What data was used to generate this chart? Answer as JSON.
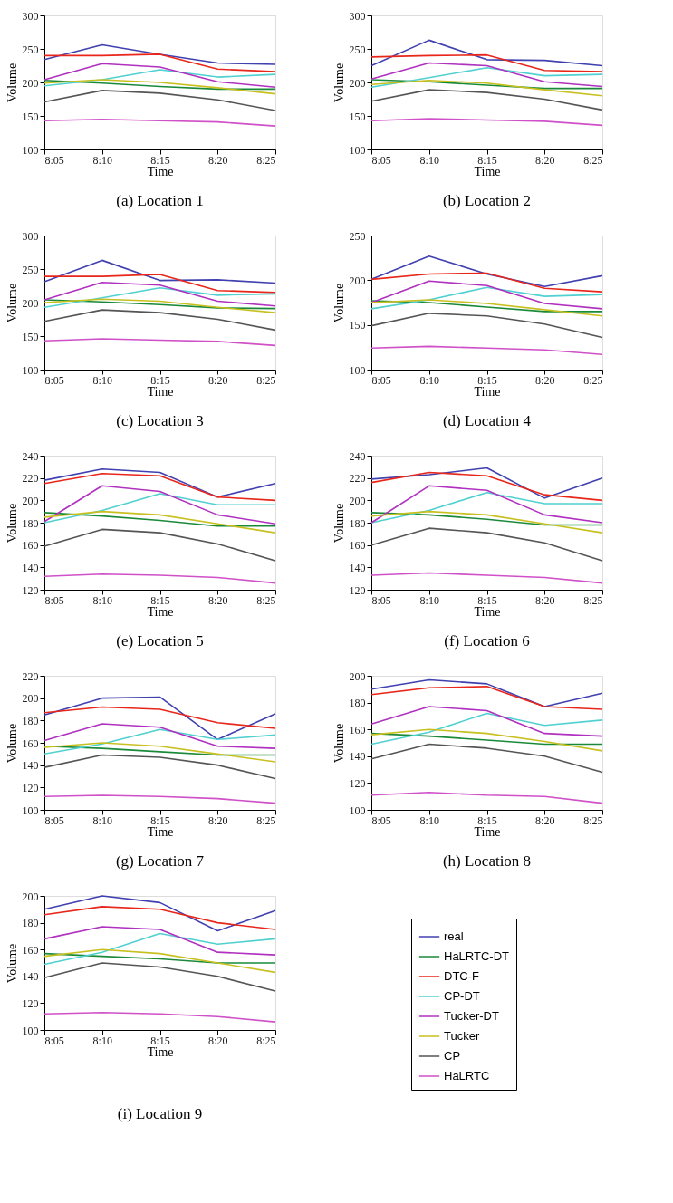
{
  "chart_data": [
    {
      "type": "line",
      "title": "(a) Location 1",
      "xlabel": "Time",
      "ylabel": "Volume",
      "categories": [
        "8:05",
        "8:10",
        "8:15",
        "8:20",
        "8:25"
      ],
      "ylim": [
        100,
        300
      ],
      "yticks": [
        100,
        150,
        200,
        250,
        300
      ],
      "grid": false,
      "legend": false,
      "series": [
        {
          "color": "#4040b0",
          "values": [
            234,
            256,
            242,
            229,
            227
          ]
        },
        {
          "color": "#1a8a3a",
          "values": [
            203,
            199,
            194,
            190,
            190
          ]
        },
        {
          "color": "#e8261a",
          "values": [
            240,
            240,
            242,
            220,
            216
          ]
        },
        {
          "color": "#50d0d0",
          "values": [
            195,
            204,
            219,
            208,
            212
          ]
        },
        {
          "color": "#b030c0",
          "values": [
            204,
            228,
            223,
            201,
            193
          ]
        },
        {
          "color": "#c8c020",
          "values": [
            199,
            204,
            200,
            192,
            183
          ]
        },
        {
          "color": "#555555",
          "values": [
            171,
            188,
            184,
            174,
            158
          ]
        },
        {
          "color": "#d050c8",
          "values": [
            143,
            145,
            143,
            141,
            135
          ]
        }
      ]
    },
    {
      "type": "line",
      "title": "(b) Location 2",
      "xlabel": "Time",
      "ylabel": "Volume",
      "categories": [
        "8:05",
        "8:10",
        "8:15",
        "8:20",
        "8:25"
      ],
      "ylim": [
        100,
        300
      ],
      "yticks": [
        100,
        150,
        200,
        250,
        300
      ],
      "grid": false,
      "legend": false,
      "series": [
        {
          "color": "#4040b0",
          "values": [
            225,
            263,
            234,
            233,
            225
          ]
        },
        {
          "color": "#1a8a3a",
          "values": [
            204,
            201,
            196,
            191,
            191
          ]
        },
        {
          "color": "#e8261a",
          "values": [
            238,
            240,
            241,
            218,
            216
          ]
        },
        {
          "color": "#50d0d0",
          "values": [
            193,
            207,
            222,
            210,
            212
          ]
        },
        {
          "color": "#b030c0",
          "values": [
            205,
            229,
            225,
            201,
            194
          ]
        },
        {
          "color": "#c8c020",
          "values": [
            197,
            203,
            199,
            189,
            180
          ]
        },
        {
          "color": "#555555",
          "values": [
            172,
            189,
            185,
            175,
            159
          ]
        },
        {
          "color": "#d050c8",
          "values": [
            143,
            146,
            144,
            142,
            136
          ]
        }
      ]
    },
    {
      "type": "line",
      "title": "(c) Location 3",
      "xlabel": "Time",
      "ylabel": "Volume",
      "categories": [
        "8:05",
        "8:10",
        "8:15",
        "8:20",
        "8:25"
      ],
      "ylim": [
        100,
        300
      ],
      "yticks": [
        100,
        150,
        200,
        250,
        300
      ],
      "grid": false,
      "legend": false,
      "series": [
        {
          "color": "#4040b0",
          "values": [
            231,
            263,
            233,
            234,
            229
          ]
        },
        {
          "color": "#1a8a3a",
          "values": [
            204,
            201,
            197,
            192,
            191
          ]
        },
        {
          "color": "#e8261a",
          "values": [
            239,
            239,
            242,
            218,
            215
          ]
        },
        {
          "color": "#50d0d0",
          "values": [
            193,
            207,
            222,
            211,
            213
          ]
        },
        {
          "color": "#b030c0",
          "values": [
            204,
            230,
            226,
            202,
            195
          ]
        },
        {
          "color": "#c8c020",
          "values": [
            200,
            205,
            202,
            193,
            185
          ]
        },
        {
          "color": "#555555",
          "values": [
            172,
            189,
            185,
            175,
            159
          ]
        },
        {
          "color": "#d050c8",
          "values": [
            143,
            146,
            144,
            142,
            136
          ]
        }
      ]
    },
    {
      "type": "line",
      "title": "(d) Location 4",
      "xlabel": "Time",
      "ylabel": "Volume",
      "categories": [
        "8:05",
        "8:10",
        "8:15",
        "8:20",
        "8:25"
      ],
      "ylim": [
        100,
        250
      ],
      "yticks": [
        100,
        150,
        200,
        250
      ],
      "grid": false,
      "legend": false,
      "series": [
        {
          "color": "#4040b0",
          "values": [
            201,
            227,
            207,
            193,
            205
          ]
        },
        {
          "color": "#1a8a3a",
          "values": [
            177,
            175,
            170,
            165,
            165
          ]
        },
        {
          "color": "#e8261a",
          "values": [
            201,
            207,
            208,
            191,
            187
          ]
        },
        {
          "color": "#50d0d0",
          "values": [
            168,
            178,
            192,
            182,
            184
          ]
        },
        {
          "color": "#b030c0",
          "values": [
            175,
            199,
            194,
            174,
            168
          ]
        },
        {
          "color": "#c8c020",
          "values": [
            175,
            178,
            174,
            167,
            160
          ]
        },
        {
          "color": "#555555",
          "values": [
            149,
            163,
            160,
            151,
            136
          ]
        },
        {
          "color": "#d050c8",
          "values": [
            124,
            126,
            124,
            122,
            117
          ]
        }
      ]
    },
    {
      "type": "line",
      "title": "(e) Location 5",
      "xlabel": "Time",
      "ylabel": "Volume",
      "categories": [
        "8:05",
        "8:10",
        "8:15",
        "8:20",
        "8:25"
      ],
      "ylim": [
        120,
        240
      ],
      "yticks": [
        120,
        140,
        160,
        180,
        200,
        220,
        240
      ],
      "grid": false,
      "legend": false,
      "series": [
        {
          "color": "#4040b0",
          "values": [
            218,
            228,
            225,
            203,
            215
          ]
        },
        {
          "color": "#1a8a3a",
          "values": [
            189,
            186,
            182,
            177,
            177
          ]
        },
        {
          "color": "#e8261a",
          "values": [
            215,
            224,
            222,
            203,
            200
          ]
        },
        {
          "color": "#50d0d0",
          "values": [
            180,
            191,
            206,
            196,
            196
          ]
        },
        {
          "color": "#b030c0",
          "values": [
            181,
            213,
            208,
            187,
            179
          ]
        },
        {
          "color": "#c8c020",
          "values": [
            185,
            190,
            187,
            179,
            171
          ]
        },
        {
          "color": "#555555",
          "values": [
            159,
            174,
            171,
            161,
            146
          ]
        },
        {
          "color": "#d050c8",
          "values": [
            132,
            134,
            133,
            131,
            126
          ]
        }
      ]
    },
    {
      "type": "line",
      "title": "(f) Location 6",
      "xlabel": "Time",
      "ylabel": "Volume",
      "categories": [
        "8:05",
        "8:10",
        "8:15",
        "8:20",
        "8:25"
      ],
      "ylim": [
        120,
        240
      ],
      "yticks": [
        120,
        140,
        160,
        180,
        200,
        220,
        240
      ],
      "grid": false,
      "legend": false,
      "series": [
        {
          "color": "#4040b0",
          "values": [
            219,
            223,
            229,
            202,
            220
          ]
        },
        {
          "color": "#1a8a3a",
          "values": [
            189,
            187,
            183,
            178,
            178
          ]
        },
        {
          "color": "#e8261a",
          "values": [
            216,
            225,
            222,
            205,
            200
          ]
        },
        {
          "color": "#50d0d0",
          "values": [
            180,
            191,
            207,
            197,
            197
          ]
        },
        {
          "color": "#b030c0",
          "values": [
            180,
            213,
            209,
            187,
            180
          ]
        },
        {
          "color": "#c8c020",
          "values": [
            186,
            190,
            187,
            179,
            171
          ]
        },
        {
          "color": "#555555",
          "values": [
            160,
            175,
            171,
            162,
            146
          ]
        },
        {
          "color": "#d050c8",
          "values": [
            133,
            135,
            133,
            131,
            126
          ]
        }
      ]
    },
    {
      "type": "line",
      "title": "(g) Location 7",
      "xlabel": "Time",
      "ylabel": "Volume",
      "categories": [
        "8:05",
        "8:10",
        "8:15",
        "8:20",
        "8:25"
      ],
      "ylim": [
        100,
        220
      ],
      "yticks": [
        100,
        120,
        140,
        160,
        180,
        200,
        220
      ],
      "grid": false,
      "legend": false,
      "series": [
        {
          "color": "#4040b0",
          "values": [
            185,
            200,
            201,
            163,
            186
          ]
        },
        {
          "color": "#1a8a3a",
          "values": [
            157,
            155,
            152,
            149,
            149
          ]
        },
        {
          "color": "#e8261a",
          "values": [
            187,
            192,
            190,
            178,
            173
          ]
        },
        {
          "color": "#50d0d0",
          "values": [
            150,
            159,
            172,
            163,
            167
          ]
        },
        {
          "color": "#b030c0",
          "values": [
            162,
            177,
            174,
            157,
            155
          ]
        },
        {
          "color": "#c8c020",
          "values": [
            156,
            160,
            157,
            150,
            143
          ]
        },
        {
          "color": "#555555",
          "values": [
            138,
            149,
            147,
            140,
            128
          ]
        },
        {
          "color": "#d050c8",
          "values": [
            112,
            113,
            112,
            110,
            106
          ]
        }
      ]
    },
    {
      "type": "line",
      "title": "(h) Location 8",
      "xlabel": "Time",
      "ylabel": "Volume",
      "categories": [
        "8:05",
        "8:10",
        "8:15",
        "8:20",
        "8:25"
      ],
      "ylim": [
        100,
        200
      ],
      "yticks": [
        100,
        120,
        140,
        160,
        180,
        200
      ],
      "grid": false,
      "legend": false,
      "series": [
        {
          "color": "#4040b0",
          "values": [
            190,
            197,
            194,
            177,
            187
          ]
        },
        {
          "color": "#1a8a3a",
          "values": [
            157,
            155,
            152,
            149,
            149
          ]
        },
        {
          "color": "#e8261a",
          "values": [
            186,
            191,
            192,
            177,
            175
          ]
        },
        {
          "color": "#50d0d0",
          "values": [
            149,
            158,
            172,
            163,
            167
          ]
        },
        {
          "color": "#b030c0",
          "values": [
            164,
            177,
            174,
            157,
            155
          ]
        },
        {
          "color": "#c8c020",
          "values": [
            156,
            160,
            157,
            151,
            144
          ]
        },
        {
          "color": "#555555",
          "values": [
            138,
            149,
            146,
            140,
            128
          ]
        },
        {
          "color": "#d050c8",
          "values": [
            111,
            113,
            111,
            110,
            105
          ]
        }
      ]
    },
    {
      "type": "line",
      "title": "(i) Location 9",
      "xlabel": "Time",
      "ylabel": "Volume",
      "categories": [
        "8:05",
        "8:10",
        "8:15",
        "8:20",
        "8:25"
      ],
      "ylim": [
        100,
        200
      ],
      "yticks": [
        100,
        120,
        140,
        160,
        180,
        200
      ],
      "grid": false,
      "legend": "right",
      "series": [
        {
          "name": "real",
          "color": "#4040b0",
          "values": [
            190,
            200,
            195,
            174,
            189
          ]
        },
        {
          "name": "HaLRTC-DT",
          "color": "#1a8a3a",
          "values": [
            157,
            155,
            153,
            150,
            150
          ]
        },
        {
          "name": "DTC-F",
          "color": "#e8261a",
          "values": [
            186,
            192,
            190,
            180,
            175
          ]
        },
        {
          "name": "CP-DT",
          "color": "#50d0d0",
          "values": [
            149,
            158,
            172,
            164,
            168
          ]
        },
        {
          "name": "Tucker-DT",
          "color": "#b030c0",
          "values": [
            168,
            177,
            175,
            158,
            156
          ]
        },
        {
          "name": "Tucker",
          "color": "#c8c020",
          "values": [
            155,
            160,
            157,
            150,
            143
          ]
        },
        {
          "name": "CP",
          "color": "#555555",
          "values": [
            139,
            150,
            147,
            140,
            129
          ]
        },
        {
          "name": "HaLRTC",
          "color": "#d050c8",
          "values": [
            112,
            113,
            112,
            110,
            106
          ]
        }
      ]
    }
  ]
}
